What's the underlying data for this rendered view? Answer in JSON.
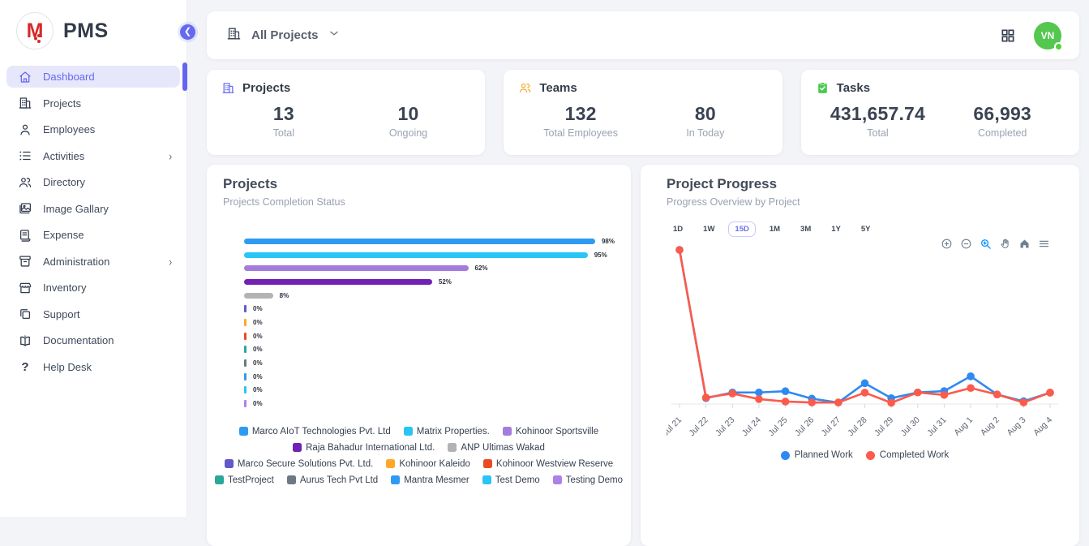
{
  "brand": {
    "logo_letter": "M",
    "name": "PMS"
  },
  "colors": {
    "accent": "#6366f1",
    "sidebar_active_bg": "#e7e7fc",
    "avatar_green": "#53c74f",
    "teams_icon": "#f5a623",
    "tasks_icon": "#47cb4c",
    "projects_icon": "#6366f1"
  },
  "sidebar": {
    "items": [
      {
        "label": "Dashboard",
        "icon": "home-icon",
        "active": true,
        "has_children": false
      },
      {
        "label": "Projects",
        "icon": "building-icon",
        "active": false,
        "has_children": false
      },
      {
        "label": "Employees",
        "icon": "user-icon",
        "active": false,
        "has_children": false
      },
      {
        "label": "Activities",
        "icon": "list-icon",
        "active": false,
        "has_children": true
      },
      {
        "label": "Directory",
        "icon": "users-icon",
        "active": false,
        "has_children": false
      },
      {
        "label": "Image Gallary",
        "icon": "image-icon",
        "active": false,
        "has_children": false
      },
      {
        "label": "Expense",
        "icon": "receipt-icon",
        "active": false,
        "has_children": false
      },
      {
        "label": "Administration",
        "icon": "archive-icon",
        "active": false,
        "has_children": true
      },
      {
        "label": "Inventory",
        "icon": "store-icon",
        "active": false,
        "has_children": false
      },
      {
        "label": "Support",
        "icon": "copy-icon",
        "active": false,
        "has_children": false
      },
      {
        "label": "Documentation",
        "icon": "book-icon",
        "active": false,
        "has_children": false
      },
      {
        "label": "Help Desk",
        "icon": "question-icon",
        "active": false,
        "has_children": false
      }
    ]
  },
  "topbar": {
    "filter_label": "All Projects"
  },
  "avatar": {
    "initials": "VN"
  },
  "stats": [
    {
      "title": "Projects",
      "icon": "building-icon",
      "icon_color": "#6366f1",
      "metrics": [
        {
          "value": "13",
          "label": "Total"
        },
        {
          "value": "10",
          "label": "Ongoing"
        }
      ]
    },
    {
      "title": "Teams",
      "icon": "users-icon",
      "icon_color": "#f5a623",
      "metrics": [
        {
          "value": "132",
          "label": "Total Employees"
        },
        {
          "value": "80",
          "label": "In Today"
        }
      ]
    },
    {
      "title": "Tasks",
      "icon": "clipboard-check-icon",
      "icon_color": "#47cb4c",
      "metrics": [
        {
          "value": "431,657.74",
          "label": "Total"
        },
        {
          "value": "66,993",
          "label": "Completed"
        }
      ]
    }
  ],
  "projects_chart": {
    "title": "Projects",
    "subtitle": "Projects Completion Status"
  },
  "progress_chart": {
    "title": "Project Progress",
    "subtitle": "Progress Overview by Project",
    "ranges": [
      "1D",
      "1W",
      "15D",
      "1M",
      "3M",
      "1Y",
      "5Y"
    ],
    "selected_range": "15D",
    "toolbar": [
      "zoom-in-icon",
      "zoom-out-icon",
      "selection-zoom-icon",
      "pan-icon",
      "home-icon",
      "menu-icon"
    ]
  },
  "chart_data": [
    {
      "type": "bar",
      "orientation": "horizontal",
      "title": "Projects Completion Status",
      "categories": [
        "Marco AIoT Technologies Pvt. Ltd",
        "Matrix Properties.",
        "Kohinoor Sportsville",
        "Raja Bahadur International Ltd.",
        "ANP Ultimas Wakad",
        "Marco Secure Solutions Pvt. Ltd.",
        "Kohinoor Kaleido",
        "Kohinoor Westview Reserve",
        "TestProject",
        "Aurus Tech Pvt Ltd",
        "Mantra Mesmer",
        "Test Demo",
        "Testing Demo"
      ],
      "values": [
        98,
        95,
        62,
        52,
        8,
        0,
        0,
        0,
        0,
        0,
        0,
        0,
        0
      ],
      "value_labels": [
        "98%",
        "95%",
        "62%",
        "52%",
        "8%",
        "0%",
        "0%",
        "0%",
        "0%",
        "0%",
        "0%",
        "0%",
        "0%"
      ],
      "colors": [
        "#2e9bf3",
        "#27c6f7",
        "#a47cdc",
        "#7222b2",
        "#b3b3b3",
        "#6159c9",
        "#ffa726",
        "#ea4a21",
        "#2aa79b",
        "#6c7884",
        "#2e9bf3",
        "#28c5f6",
        "#ac82e8"
      ],
      "xlim": [
        0,
        100
      ],
      "legend_rows": [
        [
          0,
          1,
          2
        ],
        [
          3,
          4
        ],
        [
          5,
          6,
          7
        ],
        [
          8,
          9,
          10,
          11,
          12
        ]
      ],
      "legend_position": "bottom"
    },
    {
      "type": "line",
      "title": "Project Progress",
      "x": [
        "Jul 21",
        "Jul 22",
        "Jul 23",
        "Jul 24",
        "Jul 25",
        "Jul 26",
        "Jul 27",
        "Jul 28",
        "Jul 29",
        "Jul 30",
        "Jul 31",
        "Aug 1",
        "Aug 2",
        "Aug 3",
        "Aug 4"
      ],
      "series": [
        {
          "name": "Planned Work",
          "color": "#2e8af0",
          "values": [
            100,
            3.8,
            7.5,
            7.5,
            8.3,
            3.5,
            1,
            13.5,
            3.8,
            7.5,
            8.4,
            18,
            6.2,
            1.8,
            7.4
          ]
        },
        {
          "name": "Completed Work",
          "color": "#fc5a4b",
          "values": [
            100,
            4.2,
            6.8,
            3.2,
            1.6,
            1,
            1,
            7.4,
            0.8,
            7.5,
            5.9,
            10.4,
            6.2,
            1,
            7.4
          ]
        }
      ],
      "ylim": [
        0,
        100
      ],
      "y_axis_visible": false,
      "grid": false,
      "legend_position": "bottom"
    }
  ]
}
